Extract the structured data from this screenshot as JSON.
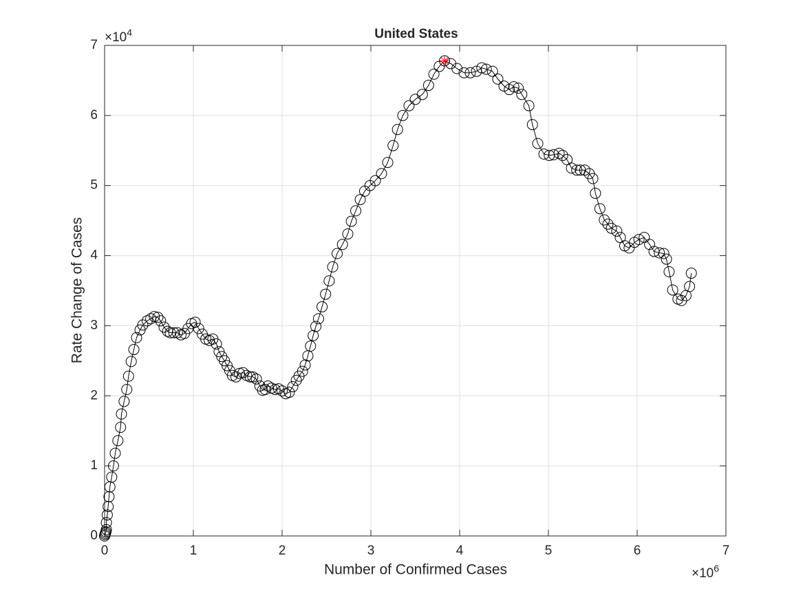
{
  "chart_data": {
    "type": "line",
    "title": "United States",
    "xlabel": "Number of Confirmed Cases",
    "ylabel": "Rate Change of Cases",
    "x_multiplier": {
      "base": "×10",
      "exponent": "6"
    },
    "y_multiplier": {
      "base": "×10",
      "exponent": "4"
    },
    "xlim": [
      0,
      7
    ],
    "ylim": [
      0,
      7
    ],
    "xticks": [
      0,
      1,
      2,
      3,
      4,
      5,
      6,
      7
    ],
    "yticks": [
      0,
      1,
      2,
      3,
      4,
      5,
      6,
      7
    ],
    "grid": true,
    "x": [
      0,
      0.005,
      0.01,
      0.015,
      0.02,
      0.02,
      0.03,
      0.04,
      0.05,
      0.06,
      0.08,
      0.1,
      0.12,
      0.15,
      0.18,
      0.19,
      0.22,
      0.25,
      0.27,
      0.3,
      0.33,
      0.36,
      0.4,
      0.43,
      0.48,
      0.52,
      0.56,
      0.6,
      0.63,
      0.67,
      0.71,
      0.74,
      0.78,
      0.82,
      0.86,
      0.9,
      0.94,
      0.98,
      1.02,
      1.06,
      1.1,
      1.14,
      1.18,
      1.22,
      1.26,
      1.29,
      1.32,
      1.35,
      1.38,
      1.41,
      1.44,
      1.48,
      1.52,
      1.56,
      1.6,
      1.64,
      1.67,
      1.71,
      1.75,
      1.78,
      1.81,
      1.84,
      1.88,
      1.92,
      1.96,
      2.0,
      2.04,
      2.08,
      2.12,
      2.16,
      2.19,
      2.23,
      2.26,
      2.29,
      2.32,
      2.35,
      2.38,
      2.41,
      2.45,
      2.49,
      2.53,
      2.57,
      2.62,
      2.68,
      2.74,
      2.78,
      2.83,
      2.88,
      2.93,
      2.99,
      3.05,
      3.12,
      3.19,
      3.25,
      3.3,
      3.36,
      3.43,
      3.5,
      3.58,
      3.65,
      3.71,
      3.77,
      3.83,
      3.9,
      3.97,
      4.05,
      4.12,
      4.19,
      4.25,
      4.3,
      4.37,
      4.43,
      4.5,
      4.56,
      4.61,
      4.66,
      4.7,
      4.78,
      4.82,
      4.88,
      4.95,
      5.01,
      5.06,
      5.12,
      5.16,
      5.21,
      5.26,
      5.32,
      5.36,
      5.41,
      5.46,
      5.5,
      5.53,
      5.58,
      5.63,
      5.67,
      5.71,
      5.77,
      5.81,
      5.86,
      5.91,
      5.97,
      6.02,
      6.08,
      6.14,
      6.19,
      6.25,
      6.3,
      6.33,
      6.36,
      6.4,
      6.46,
      6.5,
      6.55,
      6.59,
      6.61
    ],
    "series": [
      {
        "color": "#000000",
        "values": [
          0,
          0.02,
          0.04,
          0.06,
          0.09,
          0.19,
          0.3,
          0.42,
          0.56,
          0.7,
          0.84,
          1.0,
          1.18,
          1.36,
          1.55,
          1.74,
          1.92,
          2.09,
          2.28,
          2.49,
          2.66,
          2.83,
          2.94,
          3.01,
          3.07,
          3.1,
          3.13,
          3.12,
          3.07,
          2.98,
          2.92,
          2.9,
          2.9,
          2.9,
          2.87,
          2.89,
          2.96,
          3.03,
          3.05,
          2.96,
          2.88,
          2.81,
          2.79,
          2.81,
          2.74,
          2.63,
          2.56,
          2.5,
          2.43,
          2.36,
          2.29,
          2.27,
          2.32,
          2.33,
          2.29,
          2.27,
          2.27,
          2.24,
          2.14,
          2.08,
          2.09,
          2.14,
          2.11,
          2.09,
          2.1,
          2.07,
          2.03,
          2.05,
          2.13,
          2.22,
          2.28,
          2.35,
          2.44,
          2.57,
          2.71,
          2.86,
          2.99,
          3.1,
          3.27,
          3.45,
          3.64,
          3.84,
          4.03,
          4.16,
          4.31,
          4.49,
          4.64,
          4.8,
          4.92,
          5.0,
          5.07,
          5.17,
          5.33,
          5.57,
          5.8,
          6.0,
          6.14,
          6.23,
          6.3,
          6.43,
          6.59,
          6.7,
          6.78,
          6.74,
          6.67,
          6.61,
          6.61,
          6.63,
          6.68,
          6.66,
          6.63,
          6.52,
          6.42,
          6.37,
          6.41,
          6.39,
          6.3,
          6.14,
          5.87,
          5.6,
          5.45,
          5.43,
          5.44,
          5.46,
          5.43,
          5.37,
          5.25,
          5.22,
          5.22,
          5.22,
          5.17,
          5.1,
          4.89,
          4.67,
          4.51,
          4.45,
          4.39,
          4.35,
          4.26,
          4.14,
          4.11,
          4.19,
          4.23,
          4.26,
          4.16,
          4.06,
          4.04,
          4.03,
          3.95,
          3.77,
          3.51,
          3.38,
          3.36,
          3.43,
          3.56,
          3.75
        ]
      }
    ],
    "peak_marker": {
      "x": 3.83,
      "y": 6.78,
      "color": "#ff0000"
    }
  }
}
